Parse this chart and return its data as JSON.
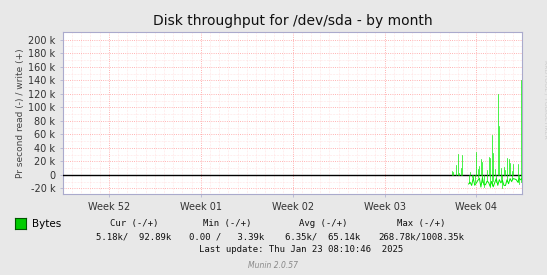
{
  "title": "Disk throughput for /dev/sda - by month",
  "ylabel": "Pr second read (-) / write (+)",
  "xlabel_ticks": [
    "Week 52",
    "Week 01",
    "Week 02",
    "Week 03",
    "Week 04"
  ],
  "yticks": [
    -20000,
    0,
    20000,
    40000,
    60000,
    80000,
    100000,
    120000,
    140000,
    160000,
    180000,
    200000
  ],
  "ytick_labels": [
    "-20 k",
    "0",
    "20 k",
    "40 k",
    "60 k",
    "80 k",
    "100 k",
    "120 k",
    "140 k",
    "160 k",
    "180 k",
    "200 k"
  ],
  "ylim": [
    -28000,
    212000
  ],
  "xlim": [
    0,
    100
  ],
  "bg_color": "#e8e8e8",
  "plot_bg_color": "#ffffff",
  "grid_color_major": "#ff9999",
  "grid_color_minor": "#ffcccc",
  "line_color": "#00ee00",
  "zero_line_color": "#000000",
  "right_label_color": "#cccccc",
  "right_label_text": "RRDTOOL / TOBIOETIKER",
  "legend_label": "Bytes",
  "legend_box_color": "#00cc00",
  "cur_label": "Cur (-/+)",
  "cur_value": "5.18k/  92.89k",
  "min_label": "Min (-/+)",
  "min_value": "0.00 /   3.39k",
  "avg_label": "Avg (-/+)",
  "avg_value": "6.35k/  65.14k",
  "max_label": "Max (-/+)",
  "max_value": "268.78k/1008.35k",
  "last_update": "Last update: Thu Jan 23 08:10:46  2025",
  "munin_version": "Munin 2.0.57",
  "week_positions": [
    10,
    30,
    50,
    70,
    90
  ],
  "spike_start_x": 84,
  "title_fontsize": 10,
  "tick_fontsize": 7,
  "label_fontsize": 6.5
}
